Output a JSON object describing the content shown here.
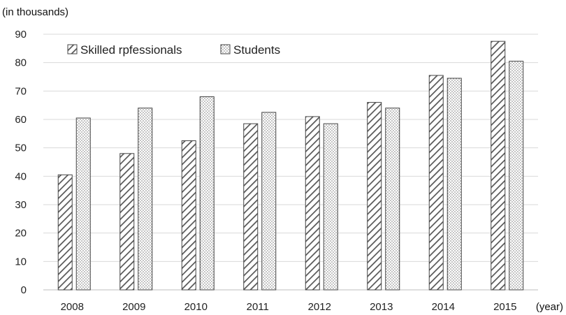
{
  "chart_data": {
    "type": "bar",
    "title": "",
    "ylabel": "(in thousands)",
    "xlabel": "(year)",
    "categories": [
      "2008",
      "2009",
      "2010",
      "2011",
      "2012",
      "2013",
      "2014",
      "2015"
    ],
    "series": [
      {
        "name": "Skilled rpfessionals",
        "pattern": "diagonal-hatch",
        "values": [
          40.5,
          48,
          52.5,
          58.5,
          61,
          66,
          75.5,
          87.5
        ]
      },
      {
        "name": "Students",
        "pattern": "dotted",
        "values": [
          60.5,
          64,
          68,
          62.5,
          58.5,
          64,
          74.5,
          80.5
        ]
      }
    ],
    "ylim": [
      0,
      90
    ],
    "yticks": [
      0,
      10,
      20,
      30,
      40,
      50,
      60,
      70,
      80,
      90
    ],
    "grid": true,
    "legend_position": "top-left",
    "colors": {
      "stroke": "#444444",
      "grid": "#d9d9d9",
      "hatch": "#555555",
      "dots": "#777777"
    }
  }
}
